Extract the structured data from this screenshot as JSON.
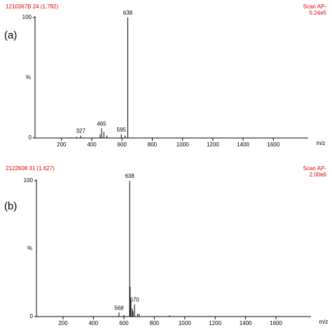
{
  "chart_data": [
    {
      "type": "spectrum",
      "panel_label": "(a)",
      "sample": "1210367B 24 (1.782)",
      "scan": "Scan AP-",
      "max_intensity": "5.24e5",
      "xlabel": "m/z",
      "ylabel": "%",
      "xlim": [
        25,
        1830
      ],
      "ylim": [
        0,
        100
      ],
      "xticks": [
        200,
        400,
        600,
        800,
        1000,
        1200,
        1400,
        1600
      ],
      "yticks": [
        0,
        100
      ],
      "color": "#000000",
      "text_color": "#e00000",
      "labeled_peaks": {
        "x": [
          327,
          465,
          595,
          638
        ],
        "values": [
          2,
          8,
          3,
          100
        ]
      },
      "minor_peaks": {
        "x": [
          300,
          455,
          480,
          500,
          620
        ],
        "values": [
          1,
          3,
          5,
          2,
          2
        ]
      }
    },
    {
      "type": "spectrum",
      "panel_label": "(b)",
      "sample": "2122608 31 (1.627)",
      "scan": "Scan AP-",
      "max_intensity": "2.00e6",
      "xlabel": "m/z",
      "ylabel": "%",
      "xlim": [
        25,
        1830
      ],
      "ylim": [
        0,
        100
      ],
      "xticks": [
        200,
        400,
        600,
        800,
        1000,
        1200,
        1400,
        1600
      ],
      "yticks": [
        0,
        100
      ],
      "color": "#000000",
      "text_color": "#e00000",
      "labeled_peaks": {
        "x": [
          568,
          638,
          670
        ],
        "values": [
          3,
          100,
          9
        ]
      },
      "minor_peaks": {
        "x": [
          600,
          641,
          646,
          655,
          660,
          690,
          700,
          900
        ],
        "values": [
          1,
          22,
          12,
          6,
          4,
          2,
          2,
          1
        ]
      }
    }
  ]
}
